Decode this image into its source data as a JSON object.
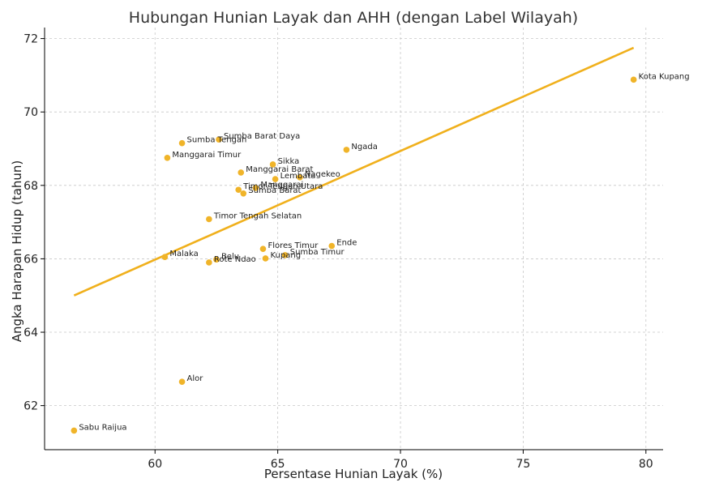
{
  "chart_data": {
    "type": "scatter",
    "title": "Hubungan Hunian Layak dan AHH (dengan Label Wilayah)",
    "xlabel": "Persentase Hunian Layak (%)",
    "ylabel": "Angka Harapan Hidup (tahun)",
    "xlim": [
      55.5,
      80.7
    ],
    "ylim": [
      60.8,
      72.3
    ],
    "xticks": [
      60,
      65,
      70,
      75,
      80
    ],
    "yticks": [
      62,
      64,
      66,
      68,
      70,
      72
    ],
    "grid": true,
    "colors": {
      "points": "#f0b429",
      "trendline": "#f0b01c"
    },
    "trendline": {
      "x": [
        56.7,
        79.5
      ],
      "y": [
        65.0,
        71.75
      ]
    },
    "points": [
      {
        "label": "Kota Kupang",
        "x": 79.5,
        "y": 70.88
      },
      {
        "label": "Sumba Barat Daya",
        "x": 62.6,
        "y": 69.25
      },
      {
        "label": "Sumba Tengah",
        "x": 61.1,
        "y": 69.15
      },
      {
        "label": "Ngada",
        "x": 67.8,
        "y": 68.97
      },
      {
        "label": "Manggarai Timur",
        "x": 60.5,
        "y": 68.75
      },
      {
        "label": "Sikka",
        "x": 64.8,
        "y": 68.57
      },
      {
        "label": "Manggarai Barat",
        "x": 63.5,
        "y": 68.35
      },
      {
        "label": "Lembata",
        "x": 64.9,
        "y": 68.17
      },
      {
        "label": "Nagekeo",
        "x": 65.9,
        "y": 68.22
      },
      {
        "label": "Manggarai",
        "x": 64.1,
        "y": 67.93
      },
      {
        "label": "Timor Tengah Utara",
        "x": 63.4,
        "y": 67.88
      },
      {
        "label": "Sumba Barat",
        "x": 63.6,
        "y": 67.78
      },
      {
        "label": "Timor Tengah Selatan",
        "x": 62.2,
        "y": 67.08
      },
      {
        "label": "Ende",
        "x": 67.2,
        "y": 66.35
      },
      {
        "label": "Flores Timur",
        "x": 64.4,
        "y": 66.27
      },
      {
        "label": "Sumba Timur",
        "x": 65.3,
        "y": 66.1
      },
      {
        "label": "Kupang",
        "x": 64.5,
        "y": 66.01
      },
      {
        "label": "Malaka",
        "x": 60.4,
        "y": 66.05
      },
      {
        "label": "Belu",
        "x": 62.5,
        "y": 65.98
      },
      {
        "label": "Rote Ndao",
        "x": 62.2,
        "y": 65.9
      },
      {
        "label": "Alor",
        "x": 61.1,
        "y": 62.65
      },
      {
        "label": "Sabu Raijua",
        "x": 56.7,
        "y": 61.32
      }
    ]
  }
}
